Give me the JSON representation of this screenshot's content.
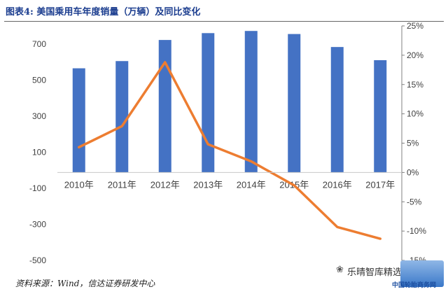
{
  "title": "图表4: 美国乘用车年度销量（万辆）及同比变化",
  "source": "资料来源：Wind，信达证券研发中心",
  "watermark": "乐晴智库精选",
  "logo_text": "中国轮胎商务网",
  "colors": {
    "bar": "#4472c4",
    "line": "#ed7d31",
    "axis": "#808080",
    "text": "#404040"
  },
  "chart_data": {
    "type": "bar",
    "categories": [
      "2010年",
      "2011年",
      "2012年",
      "2013年",
      "2014年",
      "2015年",
      "2016年",
      "2017年"
    ],
    "series": [
      {
        "name": "销量（万辆）",
        "type": "bar",
        "axis": "left",
        "values": [
          565,
          605,
          722,
          760,
          772,
          755,
          683,
          610
        ]
      },
      {
        "name": "同比变化",
        "type": "line",
        "axis": "right",
        "values": [
          4.3,
          7.9,
          18.8,
          4.8,
          1.9,
          -2.2,
          -9.3,
          -11.3
        ]
      }
    ],
    "y_left": {
      "min": -500,
      "max": 800,
      "ticks": [
        "700",
        "500",
        "300",
        "100",
        "-100",
        "-300",
        "-500"
      ],
      "tick_values": [
        700,
        500,
        300,
        100,
        -100,
        -300,
        -500
      ]
    },
    "y_right": {
      "min": -15,
      "max": 25,
      "ticks": [
        "25%",
        "20%",
        "15%",
        "10%",
        "5%",
        "0%",
        "-5%",
        "-10%",
        "-15%"
      ],
      "tick_values": [
        25,
        20,
        15,
        10,
        5,
        0,
        -5,
        -10,
        -15
      ]
    }
  }
}
